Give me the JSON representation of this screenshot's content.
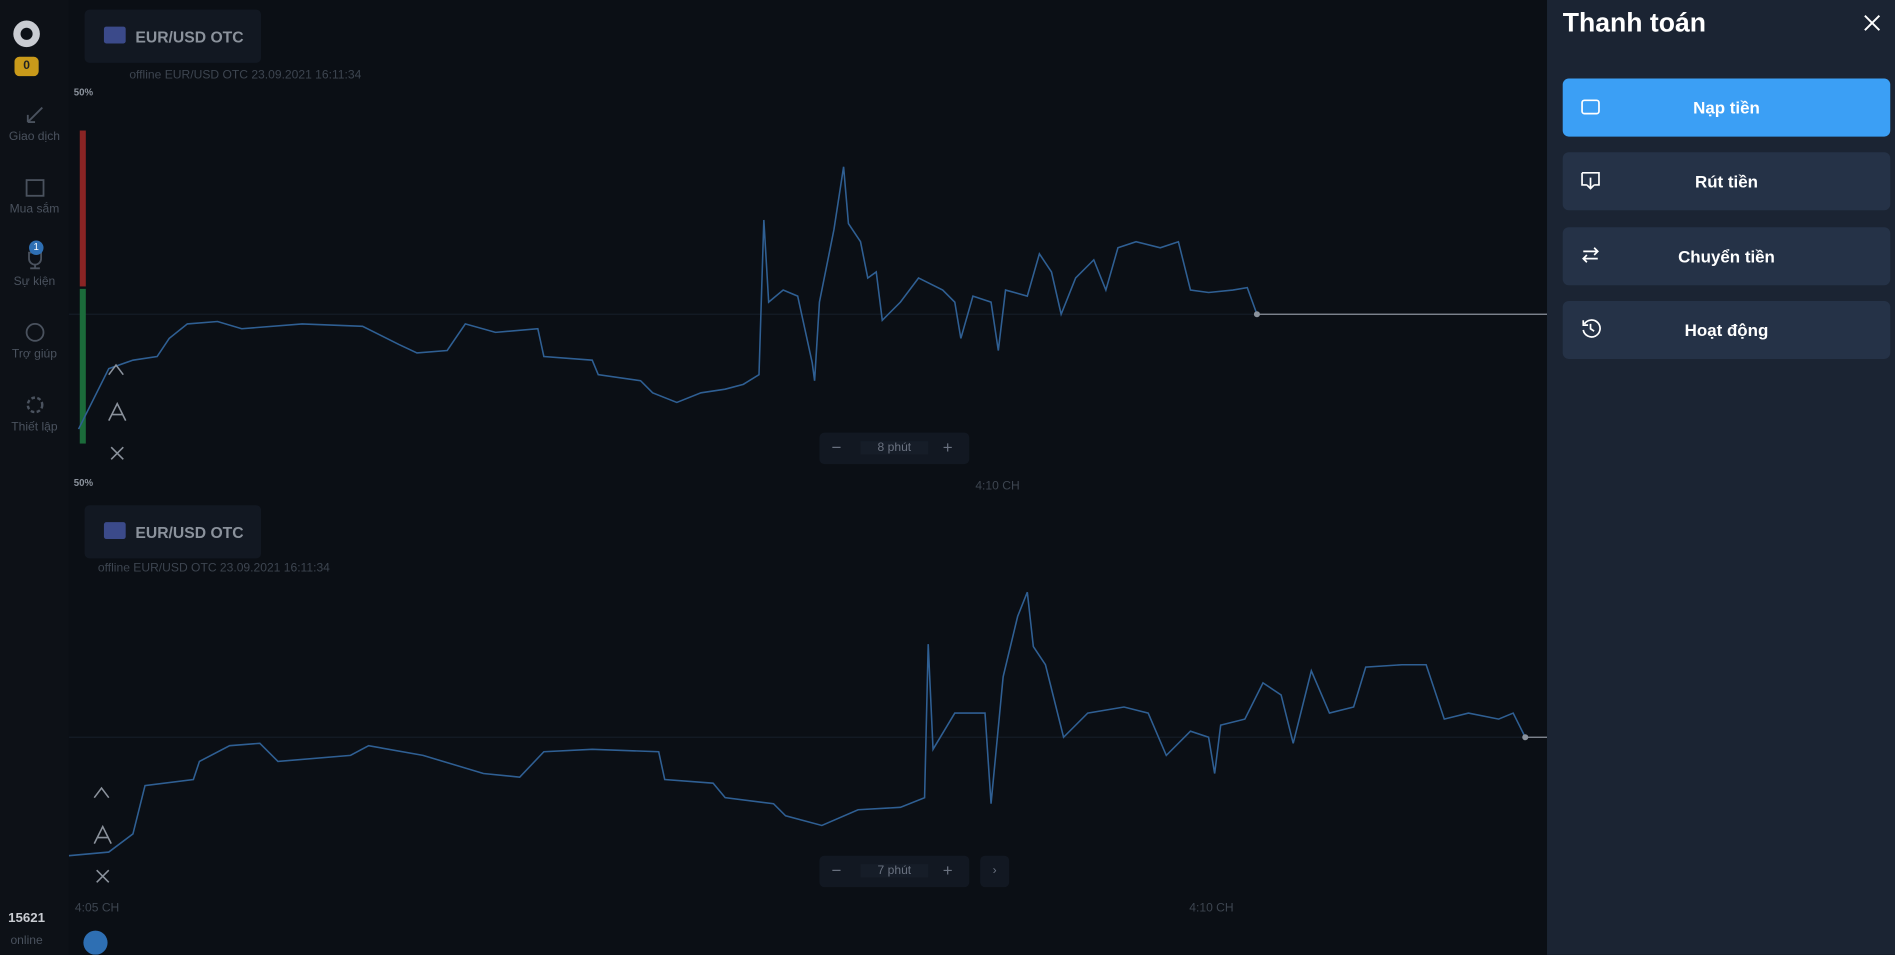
{
  "sidebar": {
    "balance_badge": "0",
    "nav": [
      "Giao dịch",
      "Mua sắm",
      "Sự kiện",
      "Trợ giúp",
      "Thiết lập"
    ],
    "event_badge": "1",
    "online_count": "15621",
    "online_label": "online"
  },
  "charts": [
    {
      "asset": "EUR/USD OTC",
      "status": "offline EUR/USD OTC  23.09.2021 16:11:34",
      "top_percent": "50%",
      "bottom_percent": "50%",
      "zoom": "8 phút",
      "time_labels": [
        "4:10 CH"
      ]
    },
    {
      "asset": "EUR/USD OTC",
      "status": "offline EUR/USD OTC  23.09.2021 16:11:34",
      "zoom": "7 phút",
      "time_labels": [
        "4:05 CH",
        "4:10 CH"
      ]
    }
  ],
  "panel": {
    "title": "Thanh toán",
    "actions": [
      "Nạp tiền",
      "Rút tiền",
      "Chuyển tiền",
      "Hoạt động"
    ]
  }
}
